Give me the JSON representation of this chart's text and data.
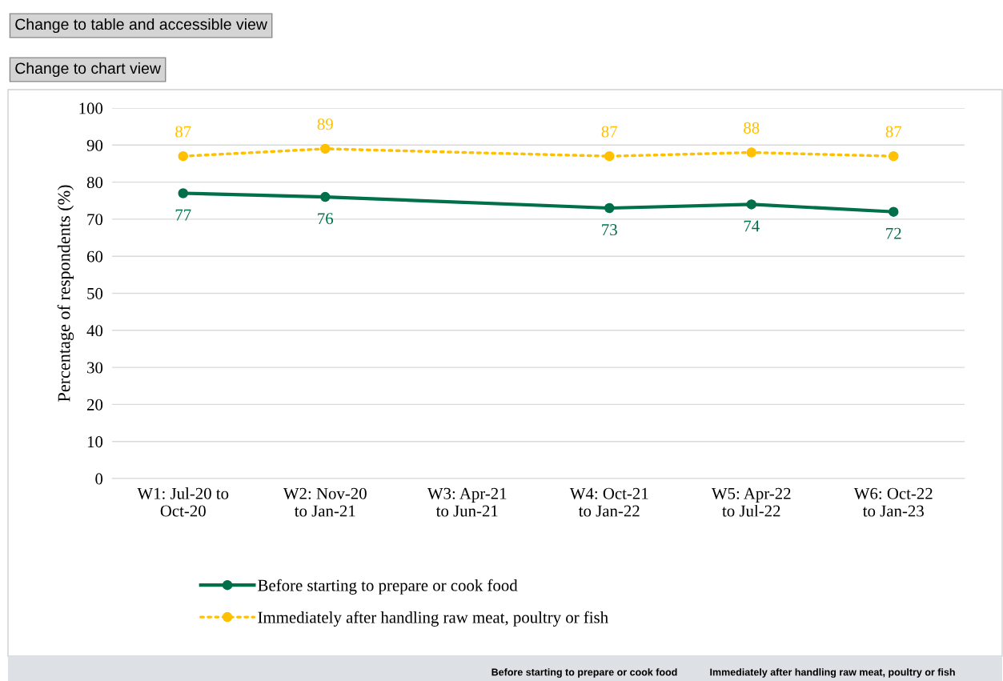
{
  "chart_data": {
    "type": "line",
    "categories": [
      "W1: Jul-20 to\nOct-20",
      "W2: Nov-20\nto Jan-21",
      "W3: Apr-21\nto Jun-21",
      "W4: Oct-21\nto Jan-22",
      "W5: Apr-22\nto Jul-22",
      "W6: Oct-22\nto Jan-23"
    ],
    "ylabel": "Percentage of respondents (%)",
    "ylim": [
      0,
      100
    ],
    "yticks": [
      0,
      10,
      20,
      30,
      40,
      50,
      60,
      70,
      80,
      90,
      100
    ],
    "grid": "y",
    "legend": "bottom",
    "data_labels": true,
    "series": [
      {
        "name": "Before starting to prepare or cook food",
        "color": "#00704a",
        "values": [
          77,
          76,
          null,
          73,
          74,
          72
        ],
        "line_style": "solid",
        "marker": "circle"
      },
      {
        "name": "Immediately after handling raw meat, poultry or fish",
        "color": "#ffc000",
        "values": [
          87,
          89,
          null,
          87,
          88,
          87
        ],
        "line_style": "dotted",
        "marker": "circle"
      }
    ],
    "annotations": [
      "Change to table and accessible view",
      "Change to chart view",
      "Before starting to prepare or cook food",
      "Immediately after handling raw meat, poultry or fish"
    ]
  }
}
